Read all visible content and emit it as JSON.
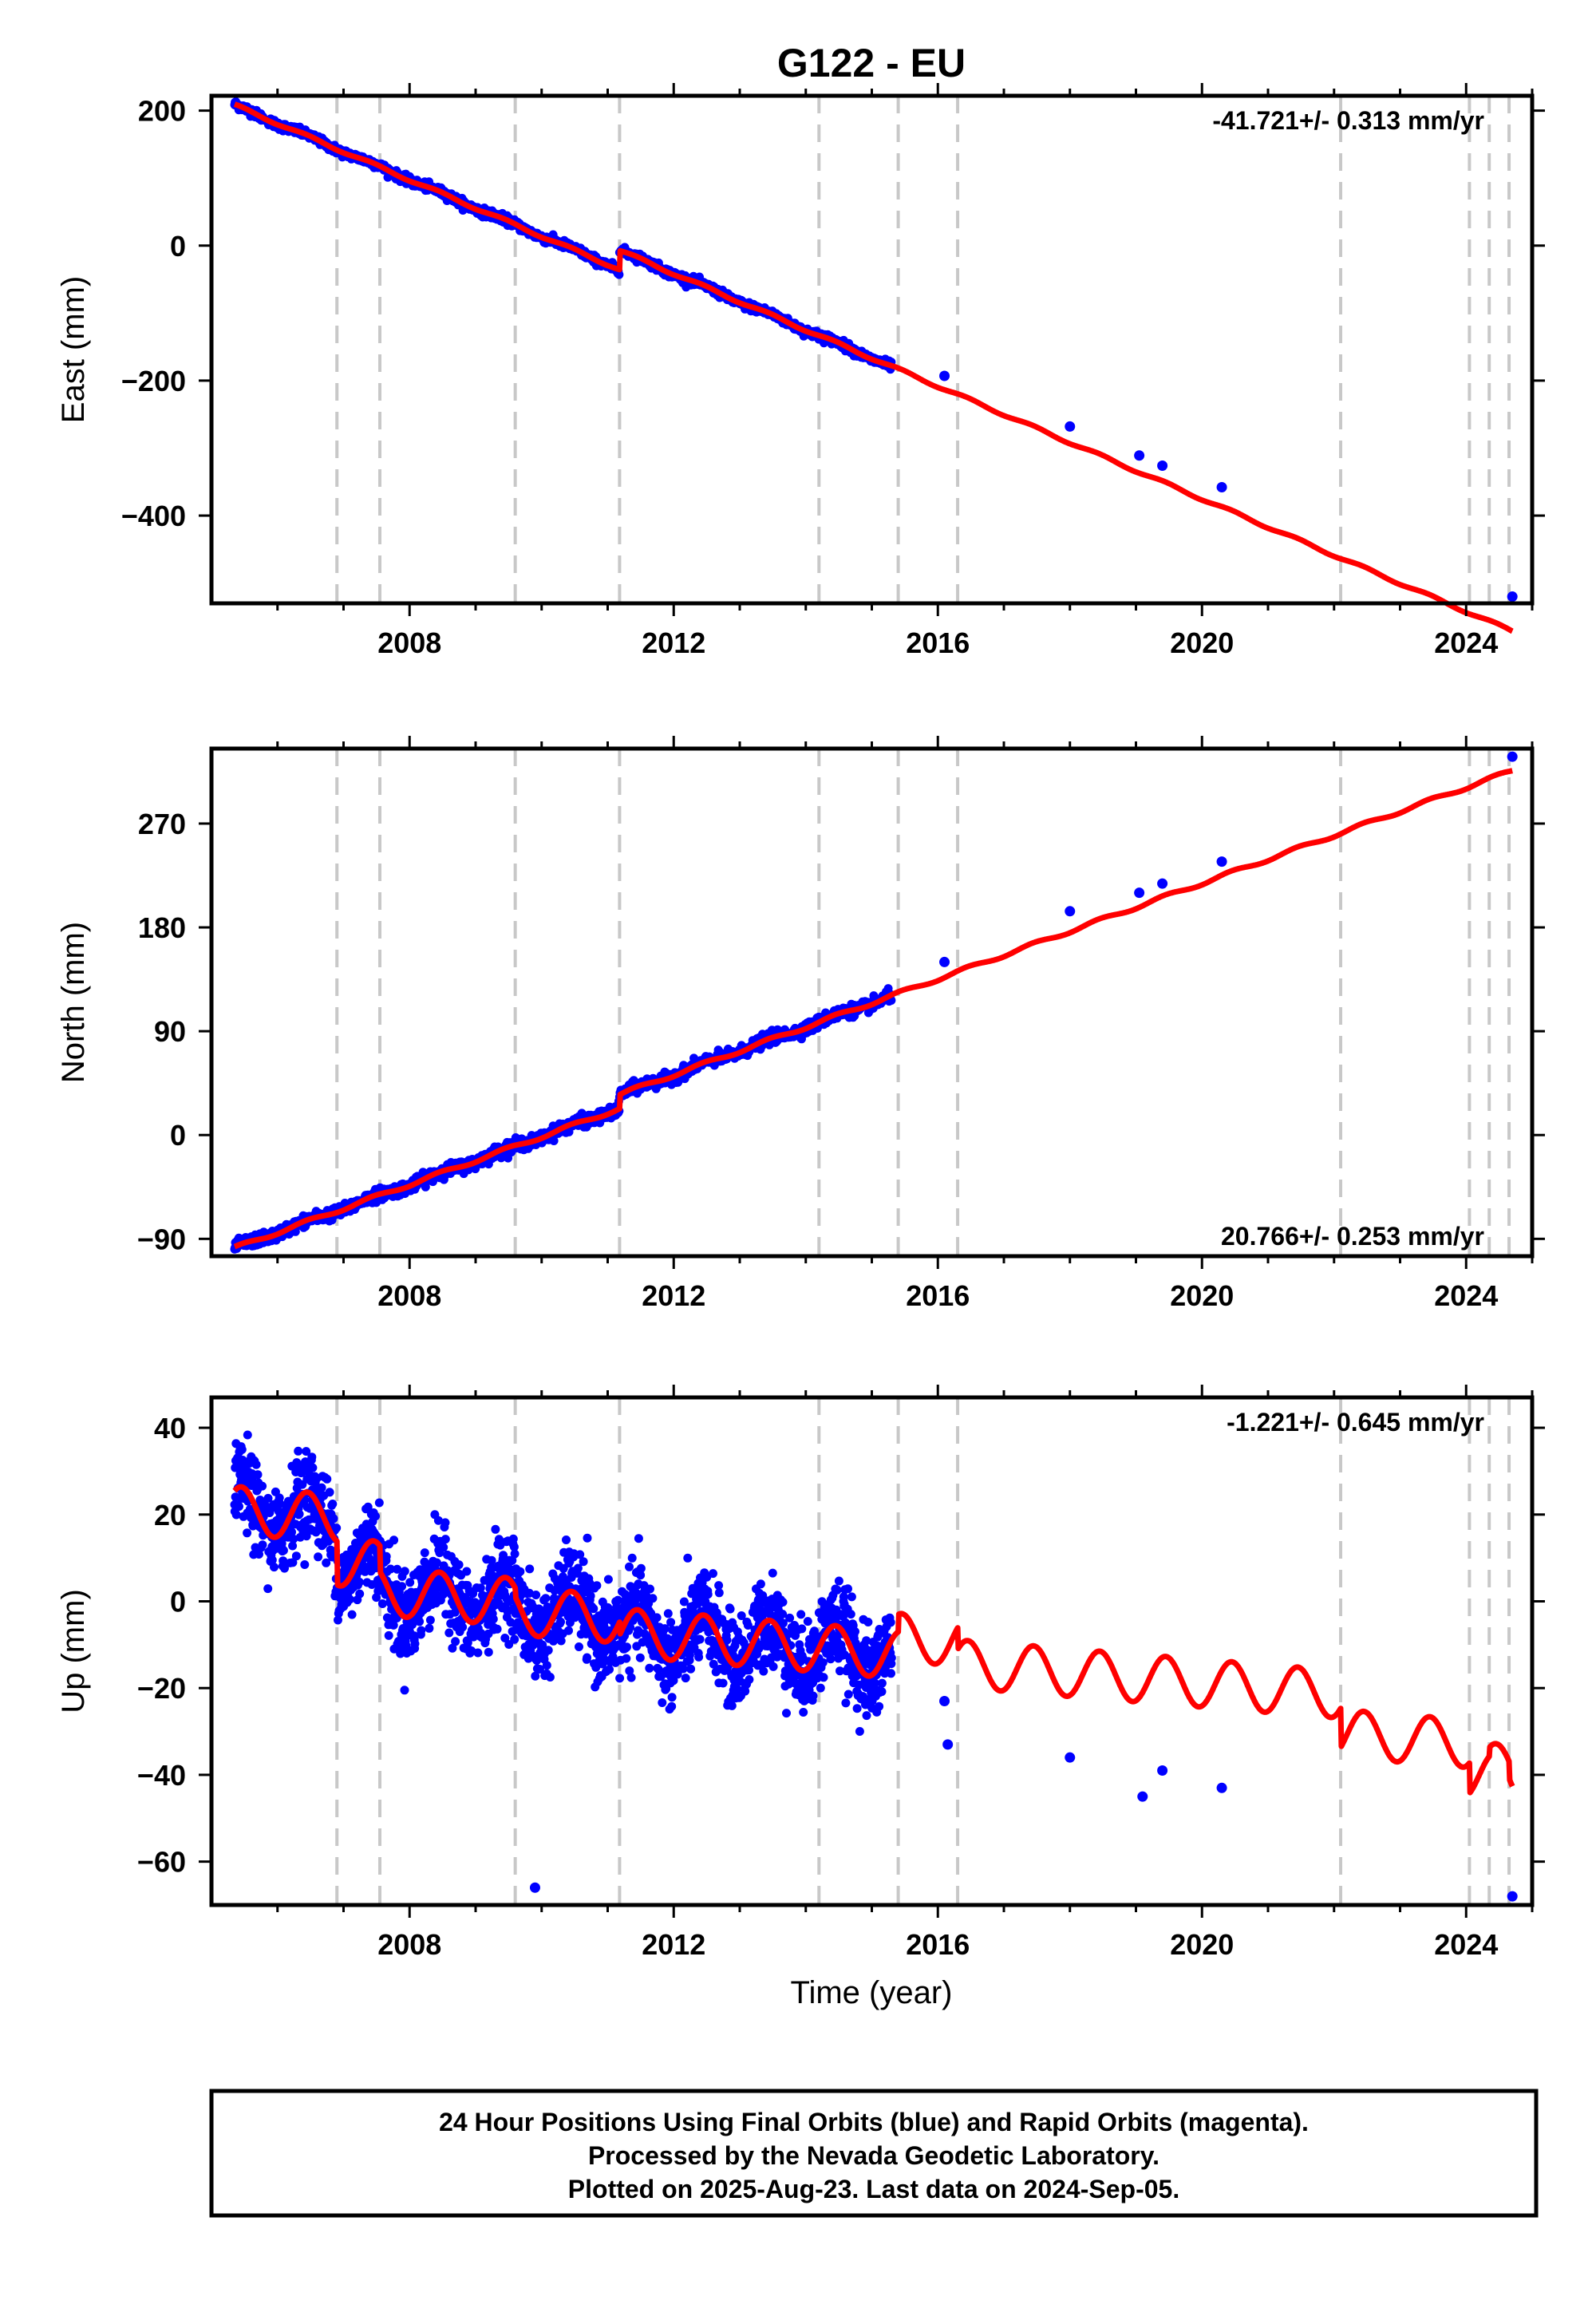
{
  "title": "G122 - EU",
  "footer": {
    "lines": [
      "24 Hour Positions Using Final Orbits (blue) and Rapid Orbits (magenta).",
      "Processed by the Nevada Geodetic Laboratory.",
      "Plotted on 2025-Aug-23. Last data on 2024-Sep-05."
    ]
  },
  "colors": {
    "observations": "#0000ff",
    "model": "#ff0000",
    "breaks": "#c8c8c8"
  },
  "chart_data": [
    {
      "type": "scatter",
      "ylabel": "East (mm)",
      "xlabel": "",
      "xlim": [
        2005.0,
        2025.0
      ],
      "ylim": [
        -530,
        222
      ],
      "xticks": [
        2008,
        2012,
        2016,
        2020,
        2024
      ],
      "xtick_labels": [
        "2008",
        "2012",
        "2016",
        "2020",
        "2024"
      ],
      "yticks": [
        -400,
        -200,
        0,
        200
      ],
      "ytick_labels": [
        "−400",
        "−200",
        "0",
        "200"
      ],
      "rate_text": "-41.721+/- 0.313 mm/yr",
      "rate_position": "top-right",
      "breaks": [
        2006.9,
        2007.55,
        2009.6,
        2011.18,
        2014.2,
        2015.4,
        2016.3,
        2022.1,
        2024.05,
        2024.35,
        2024.65
      ],
      "model": {
        "start": [
          2005.35,
          208
        ],
        "rate": -41.721,
        "amplitude": 2,
        "steps": [
          {
            "at": 2011.18,
            "size": 28
          }
        ]
      },
      "observations": {
        "start": 2005.35,
        "end": 2015.3,
        "scatter": 3,
        "sparse": [
          [
            2016.1,
            -193
          ],
          [
            2018.0,
            -268
          ],
          [
            2019.05,
            -311
          ],
          [
            2019.4,
            -326
          ],
          [
            2020.3,
            -358
          ],
          [
            2024.7,
            -520
          ]
        ]
      }
    },
    {
      "type": "scatter",
      "ylabel": "North (mm)",
      "xlabel": "",
      "xlim": [
        2005.0,
        2025.0
      ],
      "ylim": [
        -105,
        335
      ],
      "xticks": [
        2008,
        2012,
        2016,
        2020,
        2024
      ],
      "xtick_labels": [
        "2008",
        "2012",
        "2016",
        "2020",
        "2024"
      ],
      "yticks": [
        -90,
        0,
        90,
        180,
        270
      ],
      "ytick_labels": [
        "−90",
        "0",
        "90",
        "180",
        "270"
      ],
      "rate_text": "20.766+/- 0.253 mm/yr",
      "rate_position": "bottom-right",
      "breaks": [
        2006.9,
        2007.55,
        2009.6,
        2011.18,
        2014.2,
        2015.4,
        2016.3,
        2022.1,
        2024.05,
        2024.35,
        2024.65
      ],
      "model": {
        "start": [
          2005.35,
          -98
        ],
        "rate": 20.766,
        "amplitude": 1.5,
        "steps": [
          {
            "at": 2011.18,
            "size": 12
          }
        ]
      },
      "observations": {
        "start": 2005.35,
        "end": 2015.3,
        "scatter": 2.5,
        "sparse": [
          [
            2016.1,
            150
          ],
          [
            2018.0,
            194
          ],
          [
            2019.05,
            210
          ],
          [
            2019.4,
            218
          ],
          [
            2020.3,
            237
          ],
          [
            2024.7,
            328
          ]
        ]
      }
    },
    {
      "type": "scatter",
      "ylabel": "Up (mm)",
      "xlabel": "Time (year)",
      "xlim": [
        2005.0,
        2025.0
      ],
      "ylim": [
        -70,
        47
      ],
      "xticks": [
        2008,
        2012,
        2016,
        2020,
        2024
      ],
      "xtick_labels": [
        "2008",
        "2012",
        "2016",
        "2020",
        "2024"
      ],
      "yticks": [
        -60,
        -40,
        -20,
        0,
        20,
        40
      ],
      "ytick_labels": [
        "−60",
        "−40",
        "−20",
        "0",
        "20",
        "40"
      ],
      "rate_text": "-1.221+/- 0.645 mm/yr",
      "rate_position": "top-right",
      "breaks": [
        2006.9,
        2007.55,
        2009.6,
        2011.18,
        2014.2,
        2015.4,
        2016.3,
        2022.1,
        2024.05,
        2024.35,
        2024.65
      ],
      "model": {
        "start": [
          2005.35,
          21
        ],
        "rate": -1.221,
        "amplitude": 5.5,
        "steps": [
          {
            "at": 2006.9,
            "size": -10
          },
          {
            "at": 2007.55,
            "size": -6
          },
          {
            "at": 2009.6,
            "size": -2
          },
          {
            "at": 2011.18,
            "size": -3
          },
          {
            "at": 2015.4,
            "size": 4
          },
          {
            "at": 2016.3,
            "size": -5
          },
          {
            "at": 2022.1,
            "size": -9
          },
          {
            "at": 2024.05,
            "size": -7
          },
          {
            "at": 2024.35,
            "size": 2
          },
          {
            "at": 2024.65,
            "size": -4
          }
        ]
      },
      "observations": {
        "start": 2005.35,
        "end": 2015.3,
        "scatter": 5,
        "sparse": [
          [
            2009.9,
            -66
          ],
          [
            2016.1,
            -23
          ],
          [
            2016.15,
            -33
          ],
          [
            2018.0,
            -36
          ],
          [
            2019.1,
            -45
          ],
          [
            2019.4,
            -39
          ],
          [
            2020.3,
            -43
          ],
          [
            2024.7,
            -68
          ]
        ]
      }
    }
  ]
}
